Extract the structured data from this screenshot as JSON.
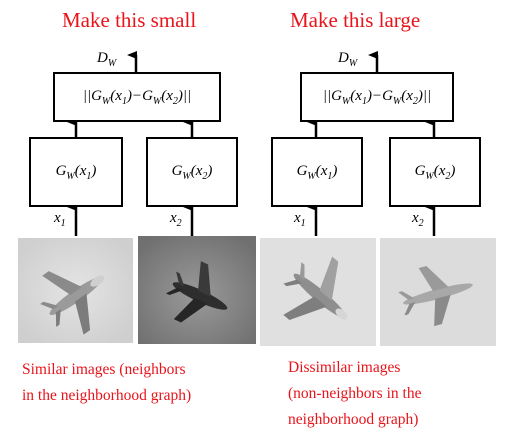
{
  "left": {
    "heading": "Make this small",
    "output_label": "D",
    "output_sub": "W",
    "distance_text": "||G_W(x_1)−G_W(x_2)||",
    "box1": {
      "fn": "G",
      "fn_sub": "W",
      "arg": "x",
      "arg_sub": "1"
    },
    "box2": {
      "fn": "G",
      "fn_sub": "W",
      "arg": "x",
      "arg_sub": "2"
    },
    "input1": {
      "var": "x",
      "sub": "1"
    },
    "input2": {
      "var": "x",
      "sub": "2"
    },
    "caption_line1": "Similar images (neighbors",
    "caption_line2": "in the neighborhood graph)"
  },
  "right": {
    "heading": "Make this large",
    "output_label": "D",
    "output_sub": "W",
    "distance_text": "||G_W(x_1)−G_W(x_2)||",
    "box1": {
      "fn": "G",
      "fn_sub": "W",
      "arg": "x",
      "arg_sub": "1"
    },
    "box2": {
      "fn": "G",
      "fn_sub": "W",
      "arg": "x",
      "arg_sub": "2"
    },
    "input1": {
      "var": "x",
      "sub": "1"
    },
    "input2": {
      "var": "x",
      "sub": "2"
    },
    "caption_line1": "Dissimilar images",
    "caption_line2": "(non-neighbors in the",
    "caption_line3": "neighborhood graph)"
  },
  "colors": {
    "caption_red": "#e8141b"
  },
  "images": [
    "airplane-photo-light-bg",
    "airplane-photo-dark-bg",
    "airplane-photo-light-bg",
    "airplane-photo-light-bg"
  ]
}
